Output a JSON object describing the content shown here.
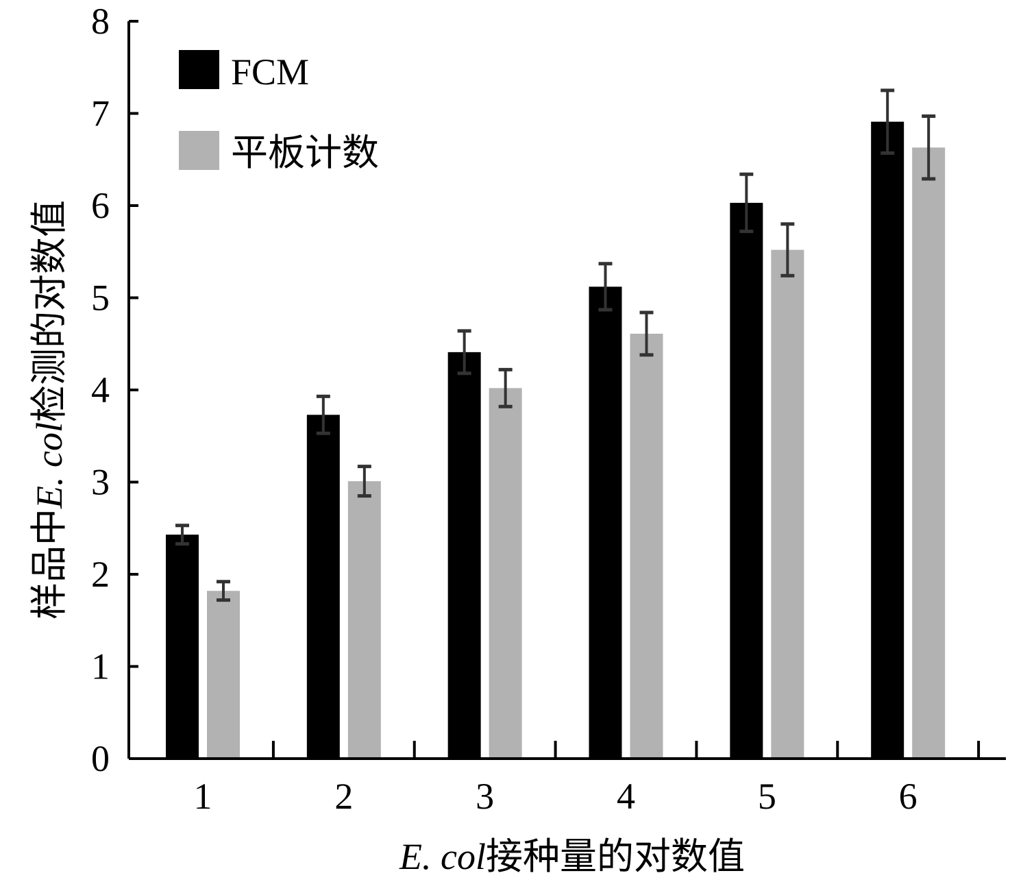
{
  "chart_data": {
    "type": "bar",
    "categories": [
      "1",
      "2",
      "3",
      "4",
      "5",
      "6"
    ],
    "series": [
      {
        "name": "FCM",
        "color": "#000000",
        "values": [
          2.43,
          3.73,
          4.41,
          5.12,
          6.03,
          6.91
        ],
        "errors": [
          0.1,
          0.2,
          0.23,
          0.25,
          0.31,
          0.34
        ]
      },
      {
        "name": "平板计数",
        "color": "#b2b2b2",
        "values": [
          1.82,
          3.01,
          4.02,
          4.61,
          5.52,
          6.63
        ],
        "errors": [
          0.1,
          0.16,
          0.2,
          0.23,
          0.28,
          0.34
        ]
      }
    ],
    "ylim": [
      0,
      8
    ],
    "yticks": [
      "0",
      "1",
      "2",
      "3",
      "4",
      "5",
      "6",
      "7",
      "8"
    ],
    "xlabel_italic": "E. col",
    "xlabel_text": "接种量的对数值",
    "ylabel_prefix": "样品中",
    "ylabel_italic": "E. col",
    "ylabel_suffix": "检测的对数值",
    "legend_position": "top-left",
    "error_bar_color": "#333333",
    "grid": false
  }
}
